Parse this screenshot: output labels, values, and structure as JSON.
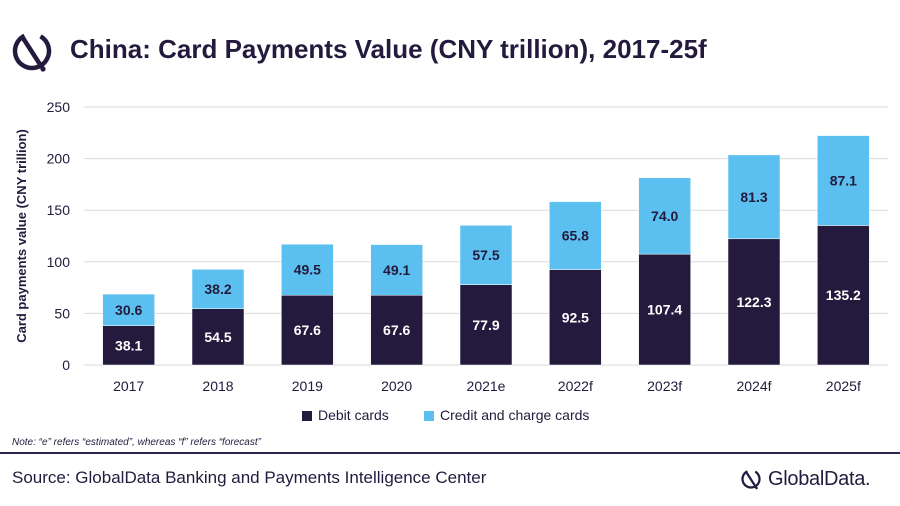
{
  "header": {
    "title": "China: Card Payments Value (CNY trillion), 2017-25f"
  },
  "footer": {
    "note": "Note: “e” refers “estimated”, whereas “f” refers “forecast”",
    "source": "Source: GlobalData Banking and Payments Intelligence Center",
    "brand": "GlobalData."
  },
  "colors": {
    "debit": "#231a3d",
    "credit": "#5bc0f0",
    "title": "#231a3d"
  },
  "chart_data": {
    "type": "bar",
    "stacked": true,
    "title": "China: Card Payments Value (CNY trillion), 2017-25f",
    "xlabel": "",
    "ylabel": "Card payments value (CNY trillion)",
    "ylim": [
      0,
      250
    ],
    "yticks": [
      0,
      50,
      100,
      150,
      200,
      250
    ],
    "grid": true,
    "legend_position": "bottom",
    "categories": [
      "2017",
      "2018",
      "2019",
      "2020",
      "2021e",
      "2022f",
      "2023f",
      "2024f",
      "2025f"
    ],
    "series": [
      {
        "name": "Debit cards",
        "color": "#231a3d",
        "values": [
          38.1,
          54.5,
          67.6,
          67.6,
          77.9,
          92.5,
          107.4,
          122.3,
          135.2
        ]
      },
      {
        "name": "Credit and charge cards",
        "color": "#5bc0f0",
        "values": [
          30.6,
          38.2,
          49.5,
          49.1,
          57.5,
          65.8,
          74.0,
          81.3,
          87.1
        ]
      }
    ]
  }
}
